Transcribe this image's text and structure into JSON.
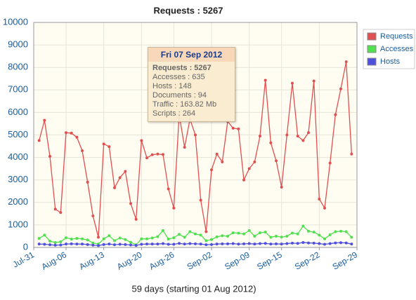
{
  "chart_data": {
    "type": "line",
    "title": "Requests : 5267",
    "x_label": "59 days (starting 01 Aug 2012)",
    "x": [
      0,
      1,
      2,
      3,
      4,
      5,
      6,
      7,
      8,
      9,
      10,
      11,
      12,
      13,
      14,
      15,
      16,
      17,
      18,
      19,
      20,
      21,
      22,
      23,
      24,
      25,
      26,
      27,
      28,
      29,
      30,
      31,
      32,
      33,
      34,
      35,
      36,
      37,
      38,
      39,
      40,
      41,
      42,
      43,
      44,
      45,
      46,
      47,
      48,
      49,
      50,
      51,
      52,
      53,
      54,
      55,
      56,
      57,
      58
    ],
    "xlim": [
      -1,
      59
    ],
    "xticks": [
      {
        "value": -1,
        "label": "Jul-31"
      },
      {
        "value": 5,
        "label": "Aug-06"
      },
      {
        "value": 12,
        "label": "Aug-13"
      },
      {
        "value": 19,
        "label": "Aug-20"
      },
      {
        "value": 25,
        "label": "Aug-26"
      },
      {
        "value": 32,
        "label": "Sep-02"
      },
      {
        "value": 39,
        "label": "Sep-09"
      },
      {
        "value": 45,
        "label": "Sep-15"
      },
      {
        "value": 52,
        "label": "Sep-22"
      },
      {
        "value": 59,
        "label": "Sep-29"
      }
    ],
    "ylim": [
      0,
      10000
    ],
    "yticks": [
      0,
      1000,
      2000,
      3000,
      4000,
      5000,
      6000,
      7000,
      8000,
      9000,
      10000
    ],
    "grid": true,
    "legend": "right",
    "series": [
      {
        "name": "Requests",
        "color": "#e05050",
        "values": [
          4750,
          5650,
          4050,
          1700,
          1550,
          5100,
          5080,
          4900,
          4300,
          2900,
          1400,
          450,
          4600,
          4480,
          2650,
          3100,
          3380,
          1950,
          1250,
          4750,
          3980,
          4120,
          4150,
          4130,
          2600,
          1750,
          5900,
          4450,
          5700,
          5000,
          2100,
          700,
          3450,
          4150,
          3800,
          5600,
          5300,
          5267,
          3000,
          3500,
          3800,
          4950,
          7430,
          4650,
          3850,
          2680,
          5000,
          7300,
          4950,
          4750,
          5100,
          7400,
          2150,
          1750,
          3750,
          5900,
          7050,
          8250,
          4150
        ]
      },
      {
        "name": "Accesses",
        "color": "#50e050",
        "values": [
          400,
          550,
          280,
          220,
          250,
          430,
          370,
          400,
          380,
          330,
          200,
          150,
          380,
          520,
          300,
          420,
          350,
          230,
          120,
          380,
          380,
          420,
          480,
          750,
          370,
          430,
          580,
          450,
          700,
          600,
          550,
          300,
          350,
          470,
          520,
          500,
          650,
          635,
          600,
          750,
          500,
          650,
          680,
          450,
          500,
          460,
          500,
          640,
          600,
          950,
          720,
          680,
          550,
          380,
          560,
          700,
          720,
          700,
          450
        ]
      },
      {
        "name": "Hosts",
        "color": "#5050e0",
        "values": [
          150,
          140,
          120,
          100,
          110,
          150,
          160,
          150,
          150,
          130,
          100,
          80,
          130,
          150,
          120,
          140,
          130,
          110,
          90,
          140,
          150,
          150,
          150,
          170,
          140,
          140,
          180,
          150,
          170,
          160,
          150,
          120,
          130,
          150,
          160,
          160,
          170,
          148,
          160,
          170,
          150,
          170,
          180,
          150,
          160,
          150,
          170,
          190,
          180,
          220,
          200,
          190,
          170,
          140,
          170,
          200,
          210,
          200,
          150
        ]
      }
    ],
    "tooltip": {
      "title": "Fri 07 Sep 2012",
      "lines": [
        "Requests : 5267",
        "Accesses : 635",
        "Hosts : 148",
        "Documents : 94",
        "Traffic : 163.82 Mb",
        "Scripts : 264"
      ]
    }
  }
}
